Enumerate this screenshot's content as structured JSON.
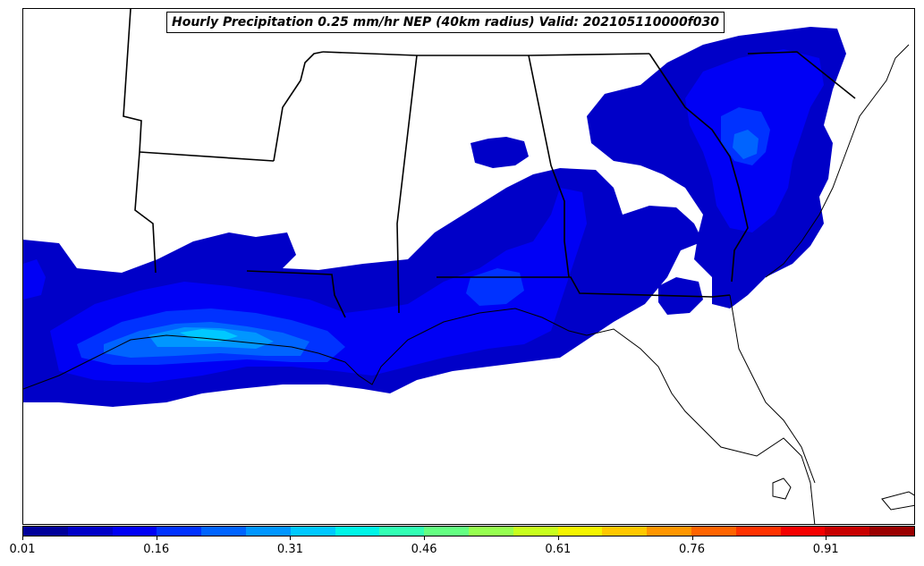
{
  "title": "Hourly Precipitation 0.25 mm/hr NEP (40km radius) Valid: 202105110000f030",
  "colorbar": {
    "colors": [
      "#00009a",
      "#0000c8",
      "#0000f5",
      "#0032ff",
      "#0064ff",
      "#0096ff",
      "#00c8ff",
      "#00f5e6",
      "#32ffb4",
      "#64ff82",
      "#96ff50",
      "#c8ff1e",
      "#f5f500",
      "#ffc800",
      "#ff9600",
      "#ff6400",
      "#ff3200",
      "#f50000",
      "#c80000",
      "#9a0000"
    ],
    "tick_labels": [
      "0.01",
      "0.16",
      "0.31",
      "0.46",
      "0.61",
      "0.76",
      "0.91"
    ],
    "tick_values": [
      0.01,
      0.16,
      0.31,
      0.46,
      0.61,
      0.76,
      0.91
    ],
    "vmin": 0.01,
    "vmax": 1.01
  },
  "map": {
    "region": "southeast-us-gulf-coast",
    "field_colors": {
      "level1": "#0000c8",
      "level2": "#0000f5",
      "level3": "#0032ff",
      "level4": "#0064ff",
      "level5": "#0096ff",
      "level6": "#00c8ff"
    }
  }
}
